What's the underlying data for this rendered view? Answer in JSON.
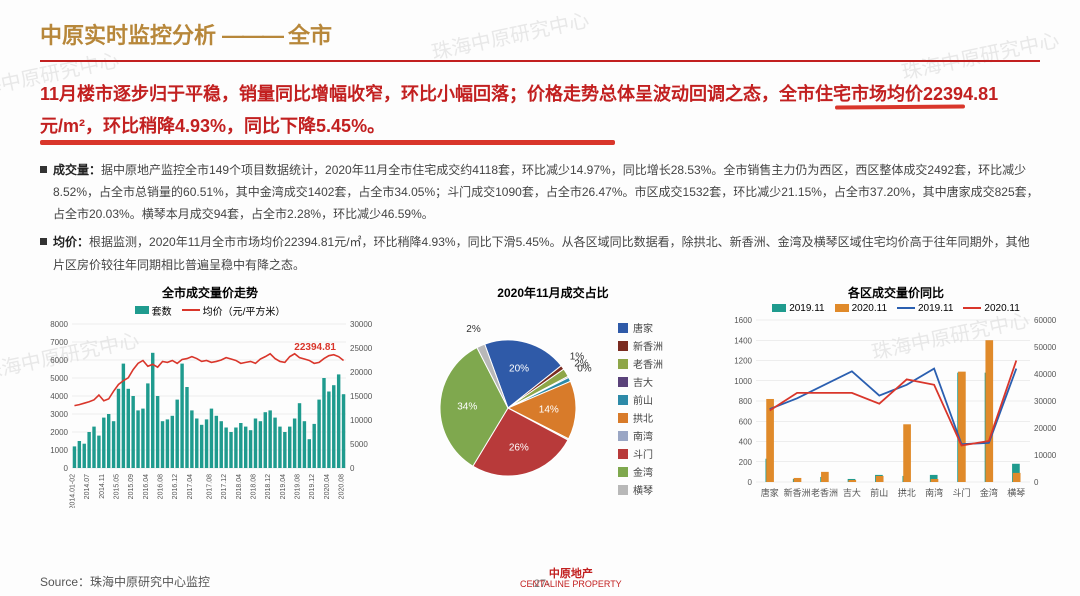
{
  "watermarks": [
    "珠海中原研究中心",
    "珠海中原研究中心",
    "珠海中原研究中心",
    "珠海中原研究中心",
    "珠海中原研究中心"
  ],
  "header": {
    "title_a": "中原实时监控分析",
    "dash": "———",
    "title_b": "全市"
  },
  "summary": "11月楼市逐步归于平稳，销量同比增幅收窄，环比小幅回落；价格走势总体呈波动回调之态，全市住宅市场均价22394.81元/m²，环比稍降4.93%，同比下降5.45%。",
  "bullets": [
    {
      "label": "成交量：",
      "text": "据中原地产监控全市149个项目数据统计，2020年11月全市住宅成交约4118套，环比减少14.97%，同比增长28.53%。全市销售主力仍为西区，西区整体成交2492套，环比减少8.52%，占全市总销量的60.51%，其中金湾成交1402套，占全市34.05%；斗门成交1090套，占全市26.47%。市区成交1532套，环比减少21.15%，占全市37.20%，其中唐家成交825套，占全市20.03%。横琴本月成交94套，占全市2.28%，环比减少46.59%。"
    },
    {
      "label": "均价：",
      "text": "根据监测，2020年11月全市市场均价22394.81元/㎡，环比稍降4.93%，同比下滑5.45%。从各区域同比数据看，除拱北、新香洲、金湾及横琴区域住宅均价高于往年同期外，其他片区房价较往年同期相比普遍呈稳中有降之态。"
    }
  ],
  "chart1": {
    "title": "全市成交量价走势",
    "legend_bar": "套数",
    "legend_line": "均价（元/平方米）",
    "bar_color": "#1f9b8e",
    "line_color": "#d9362b",
    "annot_label": "22394.81",
    "annot_color": "#d9362b",
    "y_left": {
      "min": 0,
      "max": 8000,
      "step": 1000
    },
    "y_right": {
      "min": 0,
      "max": 30000,
      "step": 5000
    },
    "x_labels": [
      "2014.01-02",
      "2014.07",
      "2014.11",
      "2015.05",
      "2015.09",
      "2016.04",
      "2016.08",
      "2016.12",
      "2017.04",
      "2017.08",
      "2017.12",
      "2018.04",
      "2018.08",
      "2018.12",
      "2019.04",
      "2019.08",
      "2019.12",
      "2020.04",
      "2020.08"
    ],
    "bars": [
      1200,
      1500,
      1350,
      2000,
      2300,
      1800,
      2800,
      3000,
      2600,
      4400,
      5800,
      4400,
      4000,
      3200,
      3300,
      4700,
      6400,
      4000,
      2600,
      2700,
      2900,
      3800,
      5800,
      4500,
      3200,
      2750,
      2400,
      2700,
      3300,
      2900,
      2600,
      2250,
      2000,
      2250,
      2500,
      2300,
      2100,
      2750,
      2600,
      3100,
      3200,
      2800,
      2300,
      2000,
      2300,
      2750,
      3600,
      2600,
      1600,
      2450,
      3800,
      5000,
      4250,
      4600,
      5200,
      4100
    ],
    "line": [
      13000,
      13200,
      13500,
      13800,
      14200,
      15200,
      14000,
      14400,
      16000,
      17400,
      18200,
      18800,
      20500,
      21800,
      22400,
      21200,
      21600,
      21000,
      22200,
      22000,
      22400,
      21800,
      22600,
      22800,
      23200,
      22800,
      22200,
      22400,
      22000,
      22200,
      22500,
      23000,
      22700,
      22400,
      21800,
      22000,
      22200,
      21800,
      22700,
      23200,
      23800,
      22800,
      22200,
      22000,
      23200,
      23800,
      23000,
      22700,
      22400,
      21800,
      22000,
      22800,
      23400,
      23600,
      23200,
      22394
    ]
  },
  "chart2": {
    "title": "2020年11月成交占比",
    "slices": [
      {
        "label": "唐家",
        "value": 20,
        "color": "#2f5aa8",
        "show_label": "20%"
      },
      {
        "label": "新香洲",
        "value": 1,
        "color": "#7a2b20",
        "show_label": "1%"
      },
      {
        "label": "老香洲",
        "value": 2,
        "color": "#8ea648",
        "show_label": "2%"
      },
      {
        "label": "吉大",
        "value": 0,
        "color": "#5a427a",
        "show_label": "0%"
      },
      {
        "label": "前山",
        "value": 1,
        "color": "#2d8aa8",
        "show_label": ""
      },
      {
        "label": "拱北",
        "value": 14,
        "color": "#d87b2a",
        "show_label": "14%"
      },
      {
        "label": "南湾",
        "value": 0,
        "color": "#9aa6c4",
        "show_label": ""
      },
      {
        "label": "斗门",
        "value": 26,
        "color": "#b83a3a",
        "show_label": "26%"
      },
      {
        "label": "金湾",
        "value": 34,
        "color": "#7fa84e",
        "show_label": "34%"
      },
      {
        "label": "横琴",
        "value": 2,
        "color": "#b8b8b8",
        "show_label": "2%"
      }
    ]
  },
  "chart3": {
    "title": "各区成交量价同比",
    "legend": [
      {
        "label": "2019.11",
        "type": "bar",
        "color": "#1f9b8e"
      },
      {
        "label": "2020.11",
        "type": "bar",
        "color": "#e08a2a"
      },
      {
        "label": "2019.11",
        "type": "line",
        "color": "#2b5fb0"
      },
      {
        "label": "2020.11",
        "type": "line",
        "color": "#d9362b"
      }
    ],
    "y_left": {
      "min": 0,
      "max": 1600,
      "step": 200
    },
    "y_right": {
      "min": 0,
      "max": 60000,
      "step": 10000
    },
    "categories": [
      "唐家",
      "新香洲",
      "老香洲",
      "吉大",
      "前山",
      "拱北",
      "南湾",
      "斗门",
      "金湾",
      "横琴"
    ],
    "bars_2019": [
      230,
      30,
      50,
      30,
      70,
      60,
      70,
      1080,
      1080,
      180
    ],
    "bars_2020": [
      820,
      40,
      100,
      20,
      60,
      570,
      30,
      1090,
      1400,
      90
    ],
    "line_2019": [
      27000,
      31000,
      36000,
      41000,
      32000,
      36000,
      42000,
      14000,
      14500,
      42000
    ],
    "line_2020": [
      26500,
      33000,
      33000,
      33000,
      29000,
      38000,
      36000,
      13500,
      15200,
      45000
    ]
  },
  "footer": {
    "source": "Source：珠海中原研究中心监控",
    "page": "-27-",
    "logo_cn": "中原地产",
    "logo_en": "CENTALINE PROPERTY"
  },
  "colors": {
    "grid": "#dddddd",
    "axis": "#888888",
    "text": "#555555"
  }
}
